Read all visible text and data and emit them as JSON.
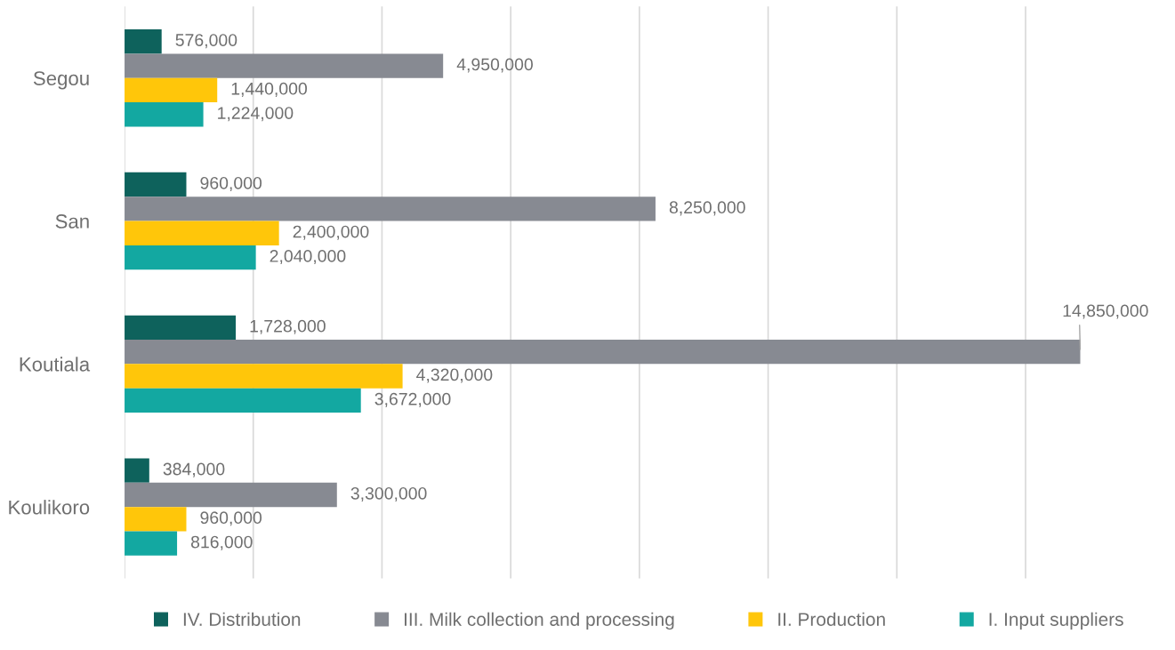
{
  "chart_data": {
    "type": "bar",
    "orientation": "horizontal",
    "categories": [
      "Segou",
      "San",
      "Koutiala",
      "Koulikoro"
    ],
    "series": [
      {
        "name": "IV. Distribution",
        "color": "#0e625c",
        "values": [
          576000,
          960000,
          1728000,
          384000
        ],
        "value_labels": [
          "576,000",
          "960,000",
          "1,728,000",
          "384,000"
        ]
      },
      {
        "name": "III. Milk collection and processing",
        "color": "#878a92",
        "values": [
          4950000,
          8250000,
          14850000,
          3300000
        ],
        "value_labels": [
          "4,950,000",
          "8,250,000",
          "14,850,000",
          "3,300,000"
        ]
      },
      {
        "name": "II. Production",
        "color": "#ffc60a",
        "values": [
          1440000,
          2400000,
          4320000,
          960000
        ],
        "value_labels": [
          "1,440,000",
          "2,400,000",
          "4,320,000",
          "960,000"
        ]
      },
      {
        "name": "I. Input suppliers",
        "color": "#13a8a1",
        "values": [
          1224000,
          2040000,
          3672000,
          816000
        ],
        "value_labels": [
          "1,224,000",
          "2,040,000",
          "3,672,000",
          "816,000"
        ]
      }
    ],
    "tick_labels": "y",
    "grid": "x",
    "legend": "bottom"
  }
}
